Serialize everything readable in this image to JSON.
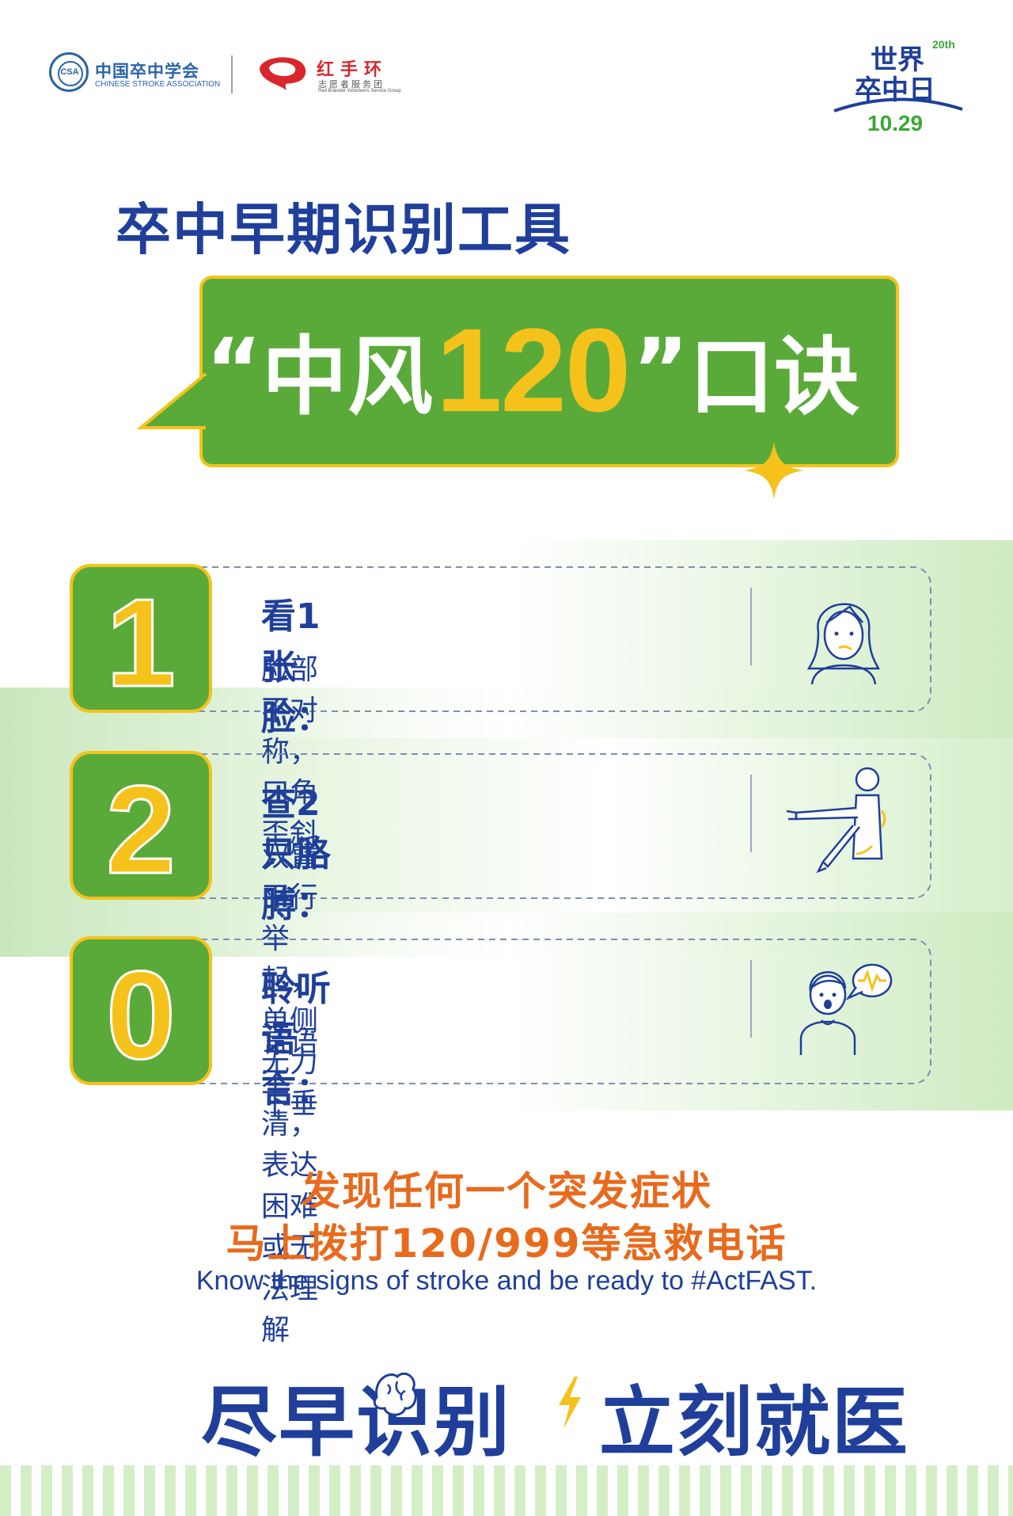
{
  "header": {
    "csa": {
      "name_cn": "中国卒中学会",
      "name_en": "CHINESE STROKE ASSOCIATION",
      "emblem_text": "CSA"
    },
    "red_hand": {
      "name_cn": "红手环",
      "sub_cn": "志愿者服务团",
      "sub_en": "Red Bracelet Volunteers Service Group"
    },
    "world_stroke_day": {
      "line1": "世界",
      "edition": "20th",
      "line2": "卒中日",
      "date": "10.29"
    }
  },
  "title": "卒中早期识别工具",
  "banner": {
    "open_quote": "“",
    "main": "中风",
    "number": "120",
    "close_quote": "”",
    "tail": "口诀"
  },
  "steps": [
    {
      "digit": "1",
      "title": "看1张脸：",
      "desc": "脸部不对称，口角歪斜",
      "icon": "face-icon"
    },
    {
      "digit": "2",
      "title": "查2只胳膊：",
      "desc": "双臂平行举起，单侧无力下垂",
      "icon": "arms-icon"
    },
    {
      "digit": "0",
      "title": "聆听语言：",
      "desc": "言语不清，表达困难或无法理解",
      "icon": "speech-icon"
    }
  ],
  "warning": {
    "line1": "发现任何一个突发症状",
    "line2": "马上拨打120/999等急救电话"
  },
  "english": "Know the signs of stroke and be ready to #ActFAST.",
  "slogan": {
    "part1": "尽早识别",
    "part2": "立刻就医"
  },
  "colors": {
    "navy": "#1f3f9a",
    "green": "#5aaa3a",
    "yellow": "#f5c21b",
    "orange": "#e86a1d",
    "light_green": "#d4efc8"
  }
}
